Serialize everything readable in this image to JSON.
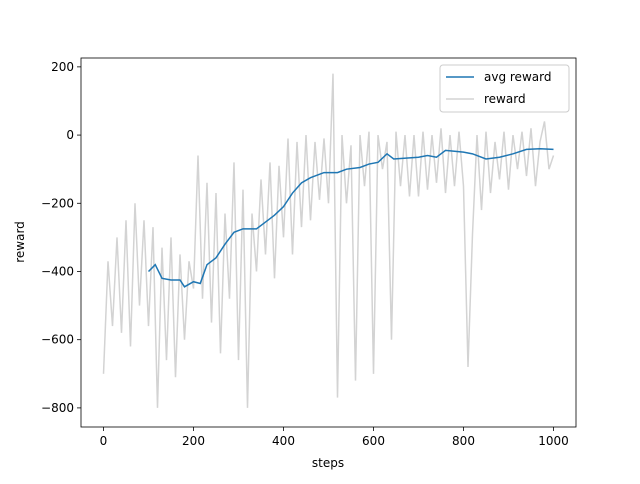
{
  "chart_data": {
    "type": "line",
    "xlabel": "steps",
    "ylabel": "reward",
    "xlim": [
      -50,
      1050
    ],
    "ylim": [
      -856,
      226
    ],
    "xticks": [
      0,
      200,
      400,
      600,
      800,
      1000
    ],
    "yticks": [
      {
        "value": -800,
        "label": "−800"
      },
      {
        "value": -600,
        "label": "−600"
      },
      {
        "value": -400,
        "label": "−400"
      },
      {
        "value": -200,
        "label": "−200"
      },
      0,
      200
    ],
    "legend": "upper right",
    "series": [
      {
        "name": "avg reward",
        "color": "#1f77b4",
        "x": [
          100,
          115,
          130,
          150,
          170,
          180,
          200,
          215,
          230,
          250,
          270,
          290,
          310,
          340,
          360,
          380,
          400,
          420,
          440,
          460,
          490,
          520,
          540,
          570,
          590,
          610,
          630,
          645,
          700,
          720,
          740,
          760,
          800,
          820,
          850,
          880,
          910,
          940,
          970,
          1000
        ],
        "values": [
          -400,
          -380,
          -420,
          -425,
          -425,
          -445,
          -430,
          -435,
          -380,
          -360,
          -320,
          -285,
          -275,
          -275,
          -255,
          -235,
          -210,
          -170,
          -140,
          -125,
          -110,
          -110,
          -100,
          -95,
          -85,
          -80,
          -55,
          -70,
          -65,
          -60,
          -65,
          -45,
          -50,
          -55,
          -70,
          -65,
          -55,
          -42,
          -40,
          -42
        ]
      },
      {
        "name": "reward",
        "color": "#d3d3d3",
        "x": [
          0,
          10,
          20,
          30,
          40,
          50,
          60,
          70,
          80,
          90,
          100,
          110,
          120,
          130,
          140,
          150,
          160,
          170,
          180,
          190,
          200,
          210,
          220,
          230,
          240,
          250,
          260,
          270,
          280,
          290,
          300,
          310,
          320,
          330,
          340,
          350,
          360,
          370,
          380,
          390,
          400,
          410,
          420,
          430,
          440,
          450,
          460,
          470,
          480,
          490,
          500,
          510,
          520,
          530,
          540,
          550,
          560,
          570,
          580,
          590,
          600,
          610,
          620,
          630,
          640,
          650,
          660,
          670,
          680,
          690,
          700,
          710,
          720,
          730,
          740,
          750,
          760,
          770,
          780,
          790,
          800,
          810,
          820,
          830,
          840,
          850,
          860,
          870,
          880,
          890,
          900,
          910,
          920,
          930,
          940,
          950,
          960,
          970,
          980,
          990,
          1000
        ],
        "values": [
          -700,
          -370,
          -560,
          -300,
          -580,
          -250,
          -620,
          -200,
          -500,
          -250,
          -560,
          -270,
          -800,
          -330,
          -660,
          -300,
          -710,
          -350,
          -600,
          -370,
          -450,
          -60,
          -480,
          -140,
          -550,
          -170,
          -640,
          -230,
          -480,
          -80,
          -660,
          -160,
          -800,
          -230,
          -400,
          -130,
          -350,
          -80,
          -420,
          -90,
          -300,
          -10,
          -350,
          -20,
          -270,
          0,
          -250,
          -20,
          -190,
          -10,
          -200,
          180,
          -770,
          0,
          -200,
          -30,
          -720,
          0,
          -150,
          10,
          -700,
          0,
          -100,
          -20,
          -600,
          10,
          -150,
          0,
          -180,
          0,
          -180,
          10,
          -160,
          0,
          -140,
          20,
          -170,
          0,
          -150,
          10,
          -150,
          -680,
          -290,
          0,
          -220,
          10,
          -170,
          -20,
          -130,
          10,
          -160,
          0,
          -100,
          10,
          -120,
          20,
          -150,
          -20,
          40,
          -100,
          -60
        ]
      }
    ]
  }
}
